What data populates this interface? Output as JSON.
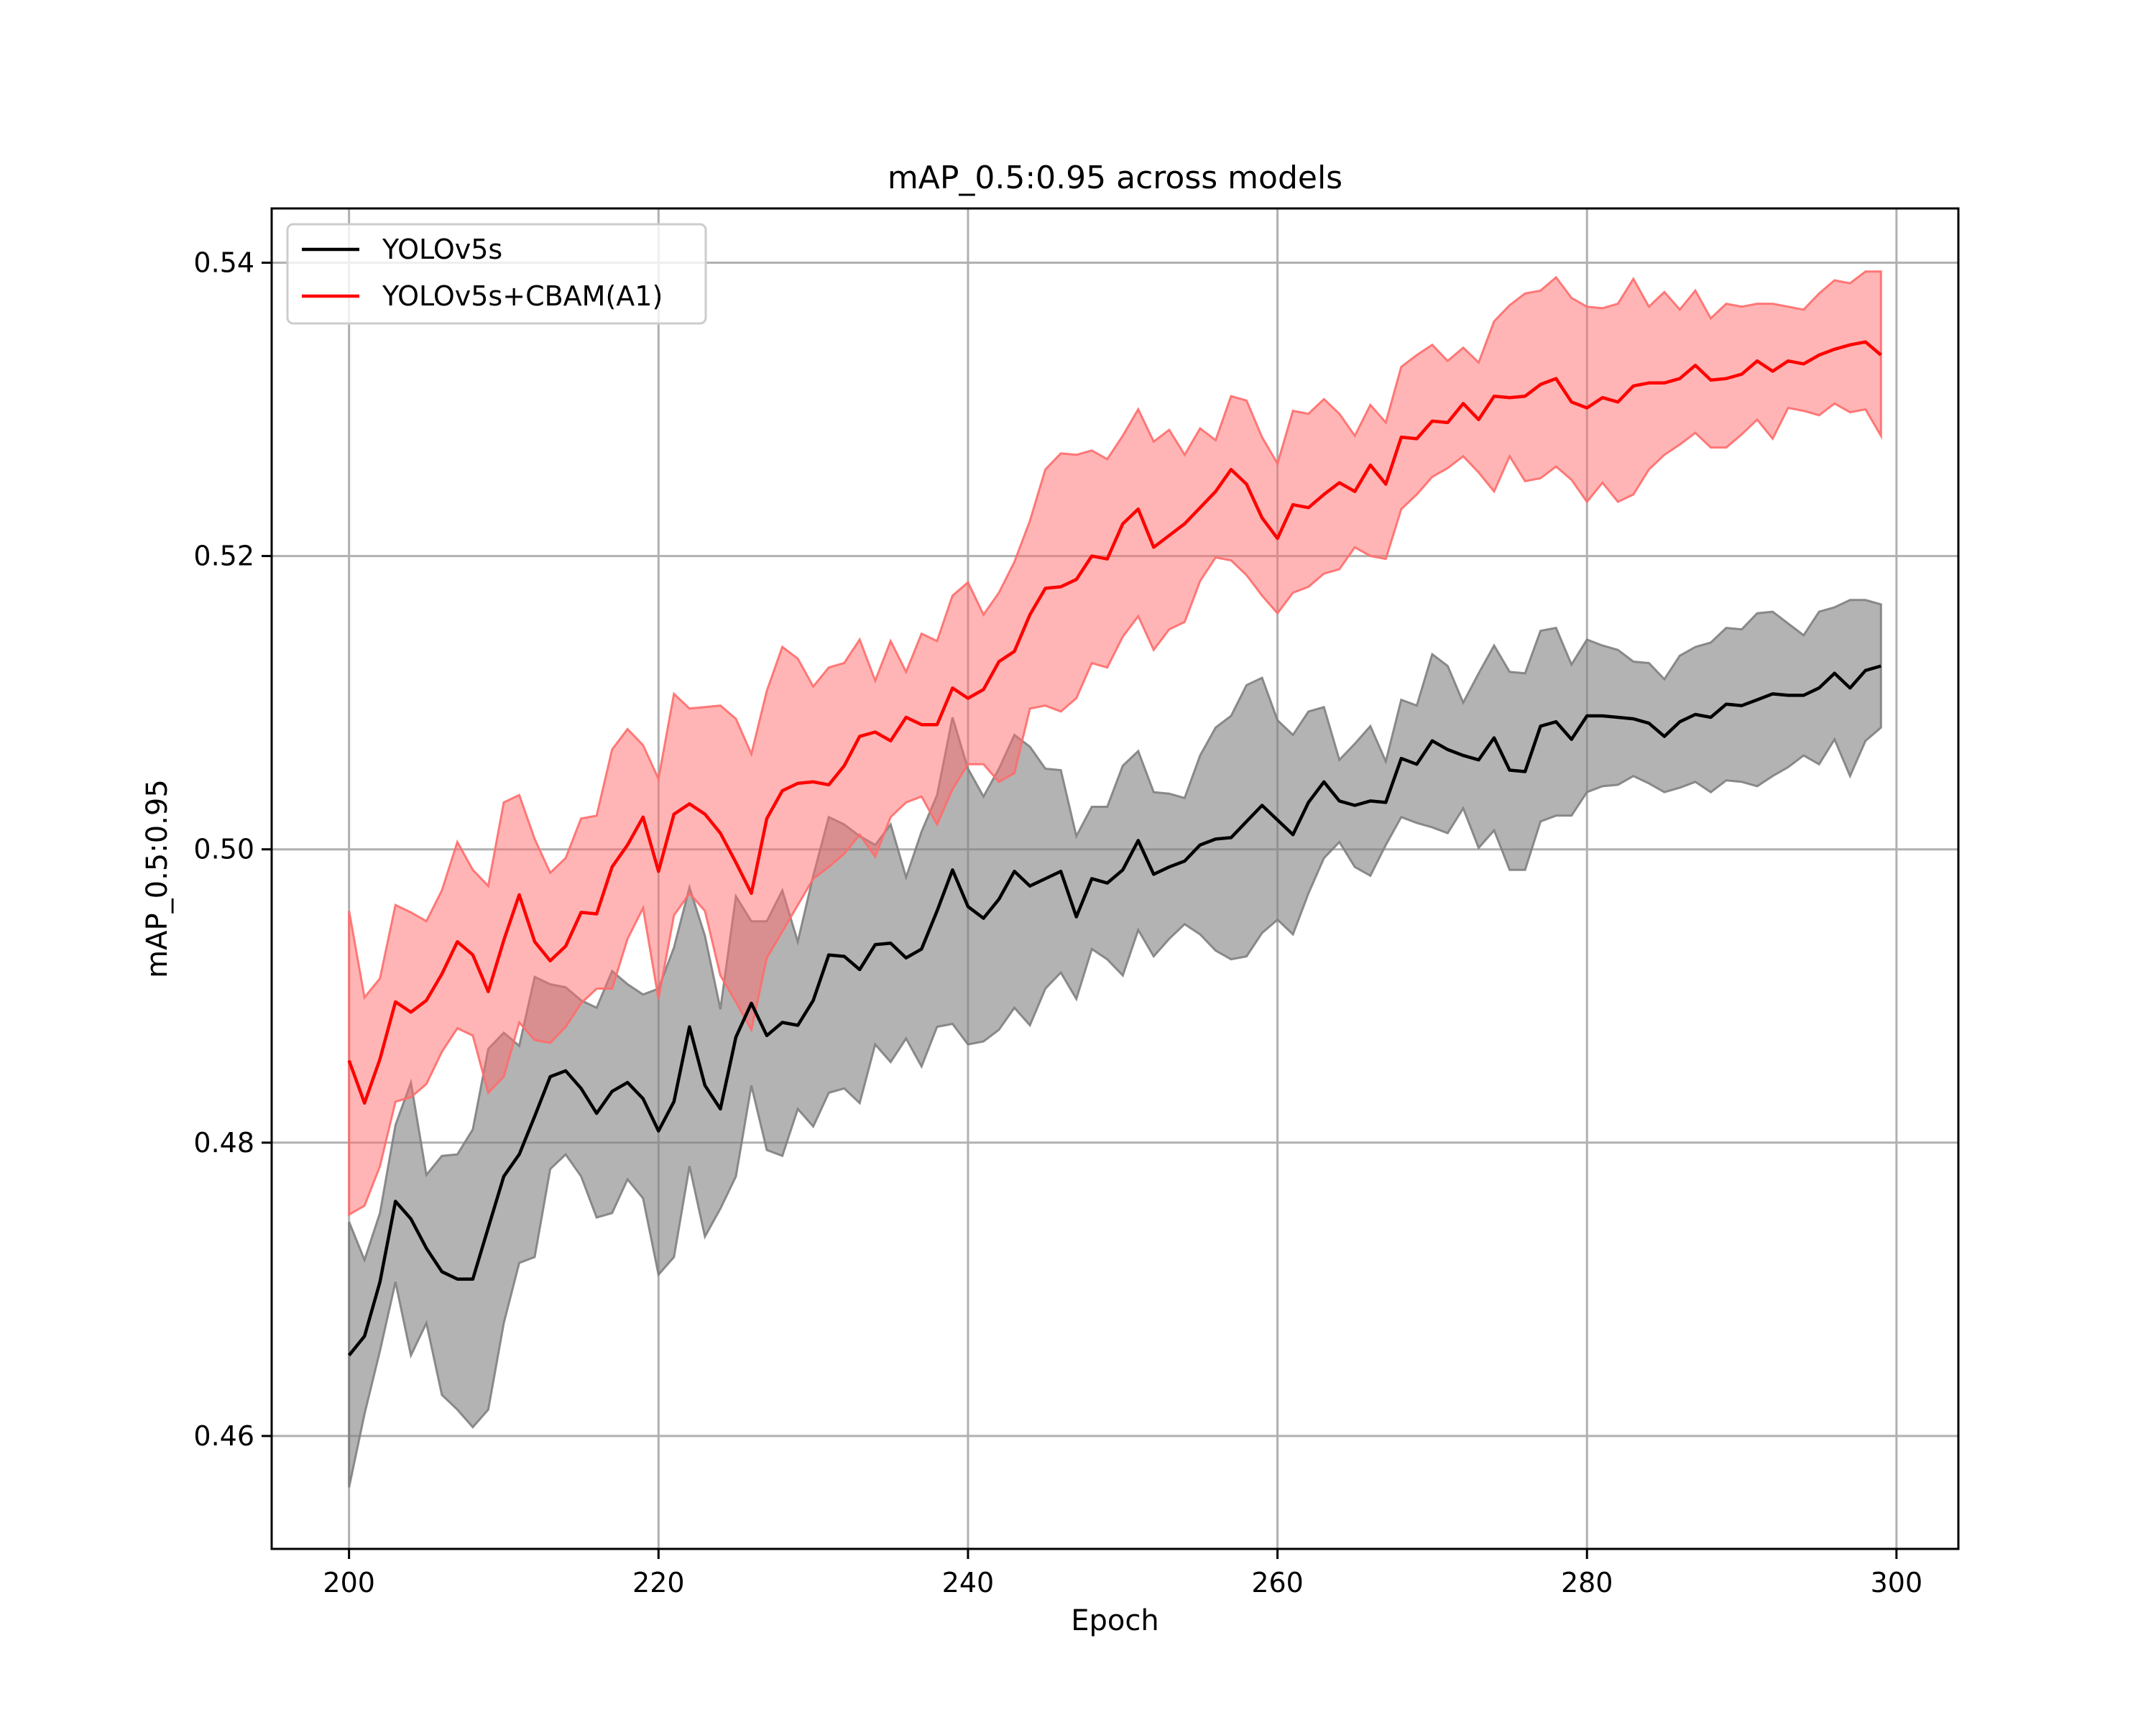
{
  "chart_data": {
    "type": "line",
    "title": "mAP_0.5:0.95 across models",
    "xlabel": "Epoch",
    "ylabel": "mAP_0.5:0.95",
    "xlim": [
      195,
      304
    ],
    "ylim": [
      0.4523,
      0.5437
    ],
    "xticks": [
      200,
      220,
      240,
      260,
      280,
      300
    ],
    "yticks": [
      0.46,
      0.48,
      0.5,
      0.52,
      0.54
    ],
    "xtick_labels": [
      "200",
      "220",
      "240",
      "260",
      "280",
      "300"
    ],
    "ytick_labels": [
      "0.46",
      "0.48",
      "0.50",
      "0.52",
      "0.54"
    ],
    "grid": true,
    "legend_position": "top-left",
    "x": [
      200,
      201,
      202,
      203,
      204,
      205,
      206,
      207,
      208,
      209,
      210,
      211,
      212,
      213,
      214,
      215,
      216,
      217,
      218,
      219,
      220,
      221,
      222,
      223,
      224,
      225,
      226,
      227,
      228,
      229,
      230,
      231,
      232,
      233,
      234,
      235,
      236,
      237,
      238,
      239,
      240,
      241,
      242,
      243,
      244,
      245,
      246,
      247,
      248,
      249,
      250,
      251,
      252,
      253,
      254,
      255,
      256,
      257,
      258,
      259,
      260,
      261,
      262,
      263,
      264,
      265,
      266,
      267,
      268,
      269,
      270,
      271,
      272,
      273,
      274,
      275,
      276,
      277,
      278,
      279,
      280,
      281,
      282,
      283,
      284,
      285,
      286,
      287,
      288,
      289,
      290,
      291,
      292,
      293,
      294,
      295,
      296,
      297,
      298,
      299
    ],
    "series": [
      {
        "name": "YOLOv5s",
        "color": "#000000",
        "band_color": "#808080",
        "values": [
          0.4655,
          0.4668,
          0.4705,
          0.476,
          0.4748,
          0.4728,
          0.4712,
          0.4707,
          0.4707,
          0.4742,
          0.4777,
          0.4792,
          0.4818,
          0.4845,
          0.4849,
          0.4837,
          0.482,
          0.4835,
          0.4841,
          0.483,
          0.4808,
          0.4828,
          0.4879,
          0.4839,
          0.4823,
          0.4872,
          0.4895,
          0.4873,
          0.4882,
          0.488,
          0.4897,
          0.4928,
          0.4927,
          0.4918,
          0.4935,
          0.4936,
          0.4926,
          0.4932,
          0.4958,
          0.4986,
          0.4961,
          0.4953,
          0.4966,
          0.4985,
          0.4975,
          0.498,
          0.4985,
          0.4954,
          0.498,
          0.4977,
          0.4986,
          0.5006,
          0.4983,
          0.4988,
          0.4992,
          0.5003,
          0.5007,
          0.5008,
          0.5019,
          0.503,
          0.502,
          0.501,
          0.5032,
          0.5046,
          0.5033,
          0.503,
          0.5033,
          0.5032,
          0.5062,
          0.5058,
          0.5074,
          0.5068,
          0.5064,
          0.5061,
          0.5076,
          0.5054,
          0.5053,
          0.5084,
          0.5087,
          0.5075,
          0.5091,
          0.5091,
          0.509,
          0.5089,
          0.5086,
          0.5077,
          0.5087,
          0.5092,
          0.509,
          0.5099,
          0.5098,
          0.5102,
          0.5106,
          0.5105,
          0.5105,
          0.511,
          0.512,
          0.511,
          0.5122,
          0.5125
        ],
        "lower": [
          0.4565,
          0.4615,
          0.4658,
          0.4705,
          0.4655,
          0.4677,
          0.4628,
          0.4618,
          0.4606,
          0.4618,
          0.4677,
          0.4718,
          0.4722,
          0.4782,
          0.4792,
          0.4777,
          0.4749,
          0.4752,
          0.4775,
          0.4762,
          0.471,
          0.4722,
          0.4784,
          0.4736,
          0.4755,
          0.4777,
          0.4839,
          0.4795,
          0.4791,
          0.4823,
          0.4811,
          0.4834,
          0.4837,
          0.4827,
          0.4867,
          0.4855,
          0.4871,
          0.4852,
          0.4879,
          0.4881,
          0.4867,
          0.4869,
          0.4877,
          0.4892,
          0.488,
          0.4905,
          0.4916,
          0.4898,
          0.4932,
          0.4925,
          0.4914,
          0.4945,
          0.4927,
          0.4939,
          0.4949,
          0.4942,
          0.4931,
          0.4925,
          0.4927,
          0.4943,
          0.4952,
          0.4942,
          0.497,
          0.4994,
          0.5005,
          0.4988,
          0.4982,
          0.5003,
          0.5022,
          0.5018,
          0.5015,
          0.5011,
          0.5028,
          0.5001,
          0.5013,
          0.4986,
          0.4986,
          0.5019,
          0.5023,
          0.5023,
          0.5039,
          0.5043,
          0.5044,
          0.505,
          0.5045,
          0.5039,
          0.5042,
          0.5046,
          0.5039,
          0.5047,
          0.5046,
          0.5043,
          0.505,
          0.5056,
          0.5064,
          0.5058,
          0.5075,
          0.505,
          0.5074,
          0.5083
        ],
        "upper": [
          0.4746,
          0.472,
          0.4752,
          0.4812,
          0.4841,
          0.4778,
          0.4791,
          0.4792,
          0.4809,
          0.4864,
          0.4875,
          0.4866,
          0.4913,
          0.4908,
          0.4906,
          0.4897,
          0.4892,
          0.4917,
          0.4908,
          0.4901,
          0.4905,
          0.4933,
          0.4974,
          0.4941,
          0.4891,
          0.4968,
          0.4951,
          0.4951,
          0.4972,
          0.4937,
          0.4982,
          0.5022,
          0.5017,
          0.5009,
          0.5003,
          0.5017,
          0.4981,
          0.5012,
          0.5037,
          0.509,
          0.5055,
          0.5036,
          0.5055,
          0.5078,
          0.507,
          0.5055,
          0.5054,
          0.5009,
          0.5029,
          0.5029,
          0.5057,
          0.5067,
          0.5039,
          0.5038,
          0.5035,
          0.5064,
          0.5083,
          0.5091,
          0.5112,
          0.5117,
          0.5088,
          0.5078,
          0.5094,
          0.5097,
          0.5061,
          0.5072,
          0.5084,
          0.506,
          0.5102,
          0.5098,
          0.5133,
          0.5125,
          0.51,
          0.512,
          0.5139,
          0.5121,
          0.512,
          0.5149,
          0.5151,
          0.5126,
          0.5143,
          0.5139,
          0.5136,
          0.5128,
          0.5127,
          0.5116,
          0.5132,
          0.5138,
          0.5141,
          0.5151,
          0.515,
          0.5161,
          0.5162,
          0.5154,
          0.5146,
          0.5162,
          0.5165,
          0.517,
          0.517,
          0.5167
        ]
      },
      {
        "name": "YOLOv5s+CBAM(A1)",
        "color": "#ff0000",
        "band_color": "#ff6b6b",
        "values": [
          0.4856,
          0.4827,
          0.4857,
          0.4896,
          0.4889,
          0.4897,
          0.4915,
          0.4937,
          0.4928,
          0.4903,
          0.4938,
          0.4969,
          0.4937,
          0.4924,
          0.4934,
          0.4957,
          0.4956,
          0.4988,
          0.5003,
          0.5022,
          0.4985,
          0.5024,
          0.5031,
          0.5024,
          0.5011,
          0.4991,
          0.497,
          0.5021,
          0.504,
          0.5045,
          0.5046,
          0.5044,
          0.5057,
          0.5077,
          0.508,
          0.5074,
          0.509,
          0.5085,
          0.5085,
          0.511,
          0.5103,
          0.5109,
          0.5128,
          0.5135,
          0.516,
          0.5178,
          0.5179,
          0.5184,
          0.52,
          0.5198,
          0.5222,
          0.5232,
          0.5206,
          0.5214,
          0.5222,
          0.5233,
          0.5244,
          0.5259,
          0.5249,
          0.5226,
          0.5212,
          0.5235,
          0.5233,
          0.5242,
          0.525,
          0.5244,
          0.5262,
          0.5249,
          0.5281,
          0.528,
          0.5292,
          0.5291,
          0.5304,
          0.5293,
          0.5309,
          0.5308,
          0.5309,
          0.5317,
          0.5321,
          0.5305,
          0.5301,
          0.5308,
          0.5305,
          0.5316,
          0.5318,
          0.5318,
          0.5321,
          0.533,
          0.532,
          0.5321,
          0.5324,
          0.5333,
          0.5326,
          0.5333,
          0.5331,
          0.5337,
          0.5341,
          0.5344,
          0.5346,
          0.5337
        ],
        "lower": [
          0.4751,
          0.4757,
          0.4784,
          0.4828,
          0.4831,
          0.484,
          0.4862,
          0.4878,
          0.4873,
          0.4834,
          0.4845,
          0.4882,
          0.487,
          0.4868,
          0.4879,
          0.4895,
          0.4905,
          0.4905,
          0.4939,
          0.496,
          0.4898,
          0.4955,
          0.497,
          0.4958,
          0.4914,
          0.4896,
          0.4877,
          0.4926,
          0.4944,
          0.4962,
          0.498,
          0.4988,
          0.4997,
          0.501,
          0.4995,
          0.5022,
          0.5032,
          0.5036,
          0.5017,
          0.5041,
          0.5058,
          0.5058,
          0.5046,
          0.5052,
          0.5096,
          0.5098,
          0.5094,
          0.5103,
          0.5127,
          0.5124,
          0.5145,
          0.5159,
          0.5136,
          0.515,
          0.5155,
          0.5183,
          0.5199,
          0.5197,
          0.5187,
          0.5173,
          0.5161,
          0.5175,
          0.5179,
          0.5188,
          0.5191,
          0.5206,
          0.52,
          0.5198,
          0.5232,
          0.5242,
          0.5254,
          0.526,
          0.5268,
          0.5257,
          0.5244,
          0.5268,
          0.5251,
          0.5253,
          0.5261,
          0.5252,
          0.5237,
          0.525,
          0.5237,
          0.5242,
          0.5259,
          0.5269,
          0.5276,
          0.5284,
          0.5274,
          0.5274,
          0.5283,
          0.5293,
          0.528,
          0.5301,
          0.5299,
          0.5296,
          0.5304,
          0.5298,
          0.53,
          0.5282
        ],
        "upper": [
          0.4958,
          0.4899,
          0.4912,
          0.4962,
          0.4957,
          0.4951,
          0.4972,
          0.5005,
          0.4986,
          0.4975,
          0.5032,
          0.5037,
          0.5007,
          0.4984,
          0.4994,
          0.5021,
          0.5023,
          0.5068,
          0.5082,
          0.5071,
          0.5048,
          0.5106,
          0.5096,
          0.5097,
          0.5098,
          0.5089,
          0.5065,
          0.5108,
          0.5138,
          0.513,
          0.5111,
          0.5124,
          0.5127,
          0.5143,
          0.5115,
          0.5142,
          0.5121,
          0.5147,
          0.5142,
          0.5173,
          0.5182,
          0.516,
          0.5175,
          0.5196,
          0.5224,
          0.5259,
          0.527,
          0.5269,
          0.5272,
          0.5266,
          0.5282,
          0.53,
          0.5278,
          0.5286,
          0.5269,
          0.5287,
          0.5279,
          0.5309,
          0.5306,
          0.5281,
          0.5263,
          0.5299,
          0.5297,
          0.5307,
          0.5297,
          0.5282,
          0.5303,
          0.5291,
          0.5329,
          0.5337,
          0.5344,
          0.5333,
          0.5342,
          0.5332,
          0.536,
          0.5371,
          0.5379,
          0.5381,
          0.539,
          0.5376,
          0.537,
          0.5369,
          0.5372,
          0.5389,
          0.537,
          0.538,
          0.5368,
          0.5381,
          0.5362,
          0.5372,
          0.537,
          0.5372,
          0.5372,
          0.537,
          0.5368,
          0.5379,
          0.5388,
          0.5386,
          0.5394,
          0.5394
        ]
      }
    ]
  }
}
